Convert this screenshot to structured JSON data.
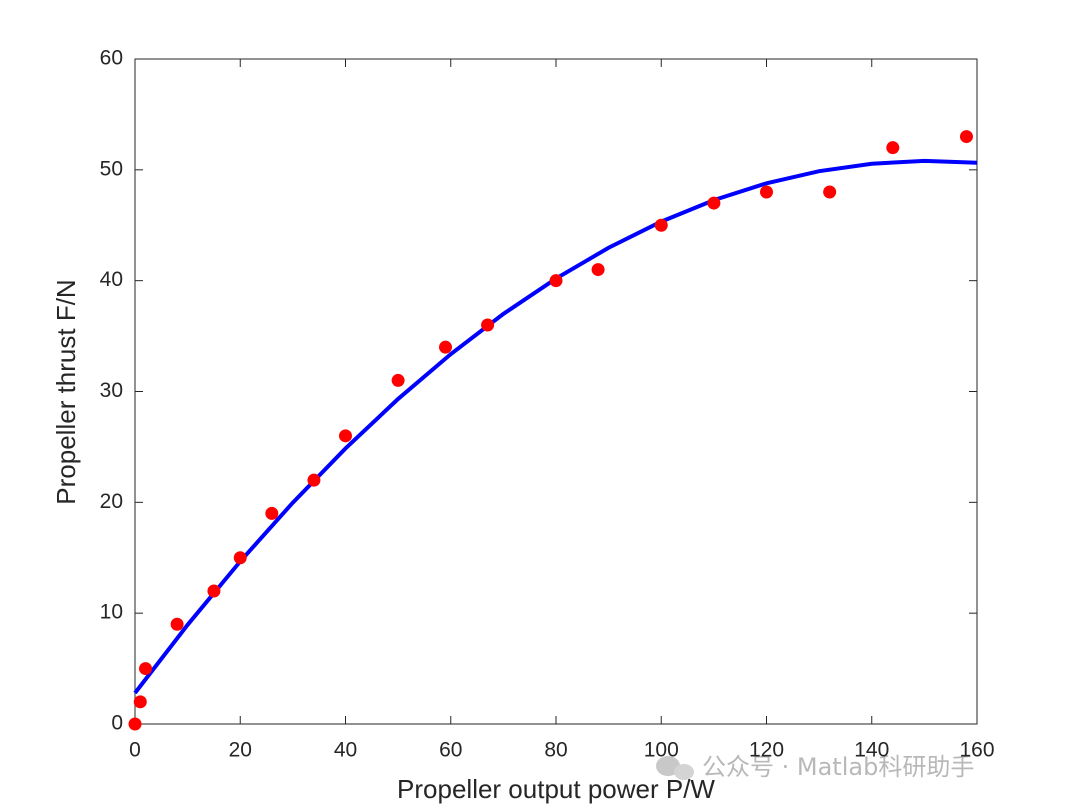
{
  "chart_data": {
    "type": "scatter",
    "xlabel": "Propeller output power P/W",
    "ylabel": "Propeller thrust F/N",
    "watermark": "公众号 · Matlab科研助手",
    "xlim": [
      0,
      160
    ],
    "xticks": [
      0,
      20,
      40,
      60,
      80,
      100,
      120,
      140,
      160
    ],
    "ylim": [
      0,
      60
    ],
    "yticks": [
      0,
      10,
      20,
      30,
      40,
      50,
      60
    ],
    "grid": false,
    "box": true,
    "series": [
      {
        "type": "scatter",
        "color": "#ff0000",
        "x": [
          0,
          1,
          2,
          8,
          15,
          20,
          26,
          34,
          40,
          50,
          59,
          67,
          80,
          88,
          100,
          110,
          120,
          132,
          144,
          158
        ],
        "values": [
          0,
          2,
          5,
          9,
          12,
          15,
          19,
          22,
          26,
          31,
          34,
          36,
          40,
          41,
          45,
          47,
          48,
          48,
          52,
          53
        ]
      },
      {
        "type": "line",
        "color": "#0000ff",
        "x": [
          0,
          10,
          20,
          30,
          40,
          50,
          60,
          70,
          80,
          90,
          100,
          110,
          120,
          130,
          140,
          150,
          160
        ],
        "values": [
          2.8,
          8.95,
          14.67,
          19.98,
          24.86,
          29.33,
          33.37,
          37.0,
          40.19,
          42.97,
          45.33,
          47.27,
          48.79,
          49.88,
          50.55,
          50.81,
          50.64
        ]
      }
    ]
  }
}
